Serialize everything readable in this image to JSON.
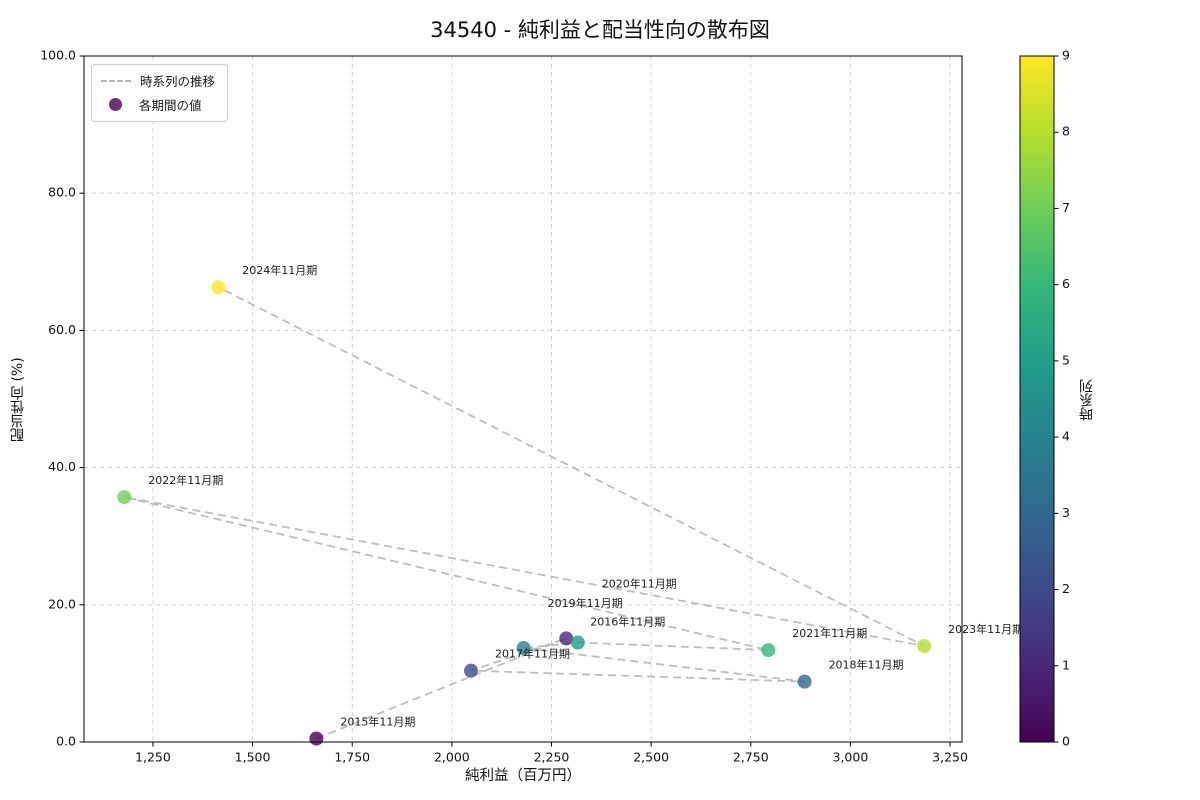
{
  "title": "34540 - 純利益と配当性向の散布図",
  "legend": {
    "line_label": "時系列の推移",
    "marker_label": "各期間の値",
    "line_color": "#b5b5b5",
    "marker_color": "#693476"
  },
  "colorbar": {
    "label": "時系列",
    "tick_labels": [
      "0",
      "1",
      "2",
      "3",
      "4",
      "5",
      "6",
      "7",
      "8",
      "9"
    ],
    "min": 0,
    "max": 9,
    "colors": [
      "#440154",
      "#482878",
      "#3e4a89",
      "#31688e",
      "#26828e",
      "#1f9e89",
      "#35b779",
      "#6ece58",
      "#b5de2b",
      "#fde725"
    ]
  },
  "chart_data": {
    "type": "scatter",
    "title": "34540 - 純利益と配当性向の散布図",
    "xlabel": "純利益（百万円）",
    "ylabel": "配当性向 (%)",
    "colorbar_label": "時系列",
    "colormap": "viridis",
    "grid": true,
    "legend_position": "upper left",
    "xlim": [
      1077,
      3280
    ],
    "ylim": [
      0,
      100
    ],
    "x_tick_values": [
      1250,
      1500,
      1750,
      2000,
      2250,
      2500,
      2750,
      3000,
      3250
    ],
    "x_tick_labels": [
      "1,250",
      "1,500",
      "1,750",
      "2,000",
      "2,250",
      "2,500",
      "2,750",
      "3,000",
      "3,250"
    ],
    "y_tick_values": [
      0,
      20,
      40,
      60,
      80,
      100
    ],
    "y_tick_labels": [
      "0.0",
      "20.0",
      "40.0",
      "60.0",
      "80.0",
      "100.0"
    ],
    "trend_line_style": "dashed",
    "trend_line_color": "#bdbdbd",
    "points": [
      {
        "label": "2015年11月期",
        "x": 1660,
        "y": 0.5,
        "t": 0
      },
      {
        "label": "2016年11月期",
        "x": 2287,
        "y": 15.1,
        "t": 1
      },
      {
        "label": "2017年11月期",
        "x": 2048,
        "y": 10.4,
        "t": 2
      },
      {
        "label": "2018年11月期",
        "x": 2885,
        "y": 8.8,
        "t": 3
      },
      {
        "label": "2019年11月期",
        "x": 2180,
        "y": 13.7,
        "t": 4
      },
      {
        "label": "2020年11月期",
        "x": 2316,
        "y": 14.5,
        "t": 5
      },
      {
        "label": "2021年11月期",
        "x": 2794,
        "y": 13.4,
        "t": 6
      },
      {
        "label": "2022年11月期",
        "x": 1178,
        "y": 35.7,
        "t": 7
      },
      {
        "label": "2023年11月期",
        "x": 3185,
        "y": 14.0,
        "t": 8
      },
      {
        "label": "2024年11月期",
        "x": 1414,
        "y": 66.3,
        "t": 9
      }
    ]
  }
}
